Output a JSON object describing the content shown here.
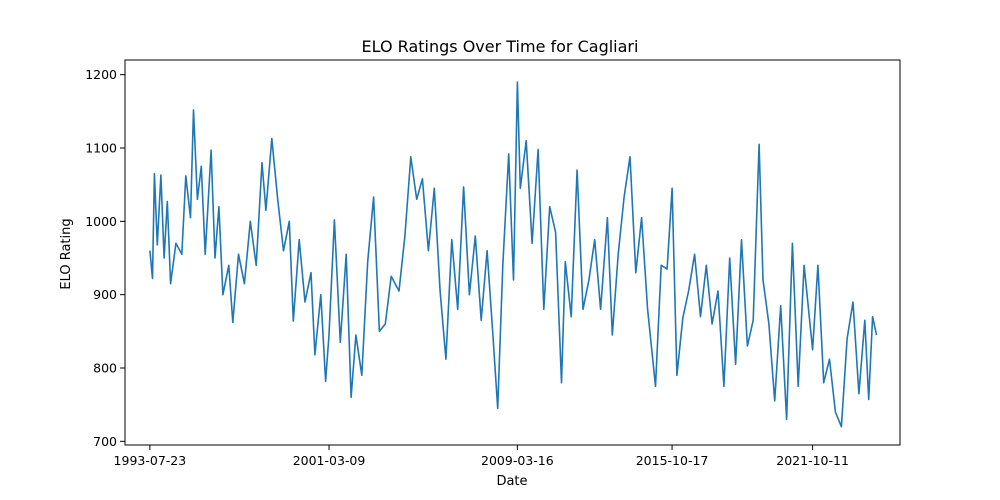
{
  "chart_data": {
    "type": "line",
    "title": "ELO Ratings Over Time for Cagliari",
    "xlabel": "Date",
    "ylabel": "ELO Rating",
    "x_ticks": [
      "1993-07-23",
      "2001-03-09",
      "2009-03-16",
      "2015-10-17",
      "2021-10-11"
    ],
    "y_ticks": [
      700,
      800,
      900,
      1000,
      1100,
      1200
    ],
    "xlim": [
      "1992-07-01",
      "2025-07-01"
    ],
    "ylim": [
      695,
      1220
    ],
    "grid": false,
    "legend": "none",
    "series_color": "#1f77b4",
    "series": [
      {
        "values": [
          [
            "1993-07-23",
            960
          ],
          [
            "1993-09-01",
            922
          ],
          [
            "1993-10-01",
            1065
          ],
          [
            "1993-11-15",
            968
          ],
          [
            "1994-01-10",
            1063
          ],
          [
            "1994-03-01",
            950
          ],
          [
            "1994-04-20",
            1027
          ],
          [
            "1994-06-10",
            915
          ],
          [
            "1994-09-01",
            970
          ],
          [
            "1994-12-01",
            955
          ],
          [
            "1995-02-01",
            1062
          ],
          [
            "1995-04-15",
            1005
          ],
          [
            "1995-06-01",
            1152
          ],
          [
            "1995-08-01",
            1030
          ],
          [
            "1995-10-01",
            1075
          ],
          [
            "1995-12-01",
            955
          ],
          [
            "1996-03-01",
            1097
          ],
          [
            "1996-05-01",
            950
          ],
          [
            "1996-07-01",
            1020
          ],
          [
            "1996-09-01",
            900
          ],
          [
            "1996-12-01",
            940
          ],
          [
            "1997-02-01",
            862
          ],
          [
            "1997-05-01",
            955
          ],
          [
            "1997-08-01",
            915
          ],
          [
            "1997-11-01",
            1000
          ],
          [
            "1998-02-01",
            940
          ],
          [
            "1998-05-01",
            1080
          ],
          [
            "1998-07-01",
            1015
          ],
          [
            "1998-10-01",
            1113
          ],
          [
            "1999-01-01",
            1030
          ],
          [
            "1999-04-01",
            960
          ],
          [
            "1999-07-01",
            1000
          ],
          [
            "1999-09-01",
            864
          ],
          [
            "1999-12-01",
            975
          ],
          [
            "2000-03-01",
            890
          ],
          [
            "2000-06-01",
            930
          ],
          [
            "2000-08-01",
            818
          ],
          [
            "2000-11-01",
            900
          ],
          [
            "2001-01-15",
            782
          ],
          [
            "2001-03-09",
            845
          ],
          [
            "2001-06-01",
            1002
          ],
          [
            "2001-09-01",
            835
          ],
          [
            "2001-12-01",
            955
          ],
          [
            "2002-02-15",
            760
          ],
          [
            "2002-05-01",
            845
          ],
          [
            "2002-08-01",
            790
          ],
          [
            "2002-11-01",
            945
          ],
          [
            "2003-02-01",
            1033
          ],
          [
            "2003-05-01",
            850
          ],
          [
            "2003-08-01",
            860
          ],
          [
            "2003-11-01",
            925
          ],
          [
            "2004-03-01",
            905
          ],
          [
            "2004-06-01",
            980
          ],
          [
            "2004-09-01",
            1088
          ],
          [
            "2004-12-01",
            1030
          ],
          [
            "2005-03-01",
            1058
          ],
          [
            "2005-06-01",
            960
          ],
          [
            "2005-09-01",
            1045
          ],
          [
            "2005-12-01",
            905
          ],
          [
            "2006-03-01",
            812
          ],
          [
            "2006-06-01",
            975
          ],
          [
            "2006-09-01",
            880
          ],
          [
            "2006-12-01",
            1047
          ],
          [
            "2007-03-01",
            900
          ],
          [
            "2007-06-01",
            980
          ],
          [
            "2007-09-01",
            865
          ],
          [
            "2007-12-01",
            960
          ],
          [
            "2008-03-01",
            845
          ],
          [
            "2008-05-15",
            745
          ],
          [
            "2008-08-01",
            940
          ],
          [
            "2008-11-01",
            1092
          ],
          [
            "2009-01-15",
            920
          ],
          [
            "2009-03-16",
            1190
          ],
          [
            "2009-05-01",
            1045
          ],
          [
            "2009-08-01",
            1110
          ],
          [
            "2009-11-01",
            970
          ],
          [
            "2010-02-01",
            1098
          ],
          [
            "2010-05-01",
            880
          ],
          [
            "2010-08-01",
            1020
          ],
          [
            "2010-11-01",
            985
          ],
          [
            "2011-02-01",
            780
          ],
          [
            "2011-04-01",
            945
          ],
          [
            "2011-07-01",
            870
          ],
          [
            "2011-10-01",
            1070
          ],
          [
            "2012-01-01",
            880
          ],
          [
            "2012-04-01",
            920
          ],
          [
            "2012-07-01",
            975
          ],
          [
            "2012-10-01",
            880
          ],
          [
            "2013-01-15",
            1005
          ],
          [
            "2013-04-01",
            845
          ],
          [
            "2013-07-01",
            955
          ],
          [
            "2013-10-01",
            1033
          ],
          [
            "2014-01-01",
            1088
          ],
          [
            "2014-04-01",
            930
          ],
          [
            "2014-07-01",
            1005
          ],
          [
            "2014-10-01",
            880
          ],
          [
            "2015-02-01",
            775
          ],
          [
            "2015-05-01",
            940
          ],
          [
            "2015-08-01",
            935
          ],
          [
            "2015-10-17",
            1045
          ],
          [
            "2016-01-01",
            790
          ],
          [
            "2016-04-01",
            868
          ],
          [
            "2016-07-01",
            905
          ],
          [
            "2016-10-01",
            955
          ],
          [
            "2017-01-01",
            870
          ],
          [
            "2017-04-01",
            940
          ],
          [
            "2017-07-01",
            860
          ],
          [
            "2017-10-01",
            905
          ],
          [
            "2018-01-01",
            775
          ],
          [
            "2018-04-01",
            950
          ],
          [
            "2018-07-01",
            805
          ],
          [
            "2018-10-01",
            975
          ],
          [
            "2019-01-01",
            830
          ],
          [
            "2019-04-01",
            865
          ],
          [
            "2019-07-01",
            1105
          ],
          [
            "2019-09-01",
            920
          ],
          [
            "2019-12-01",
            860
          ],
          [
            "2020-03-01",
            755
          ],
          [
            "2020-06-01",
            885
          ],
          [
            "2020-09-01",
            730
          ],
          [
            "2020-12-01",
            970
          ],
          [
            "2021-03-01",
            775
          ],
          [
            "2021-06-01",
            940
          ],
          [
            "2021-10-11",
            825
          ],
          [
            "2022-01-01",
            940
          ],
          [
            "2022-04-01",
            780
          ],
          [
            "2022-07-01",
            812
          ],
          [
            "2022-10-01",
            740
          ],
          [
            "2023-01-01",
            720
          ],
          [
            "2023-04-01",
            840
          ],
          [
            "2023-07-01",
            890
          ],
          [
            "2023-10-01",
            765
          ],
          [
            "2024-01-01",
            865
          ],
          [
            "2024-03-01",
            757
          ],
          [
            "2024-05-01",
            870
          ],
          [
            "2024-07-01",
            845
          ]
        ]
      }
    ]
  }
}
